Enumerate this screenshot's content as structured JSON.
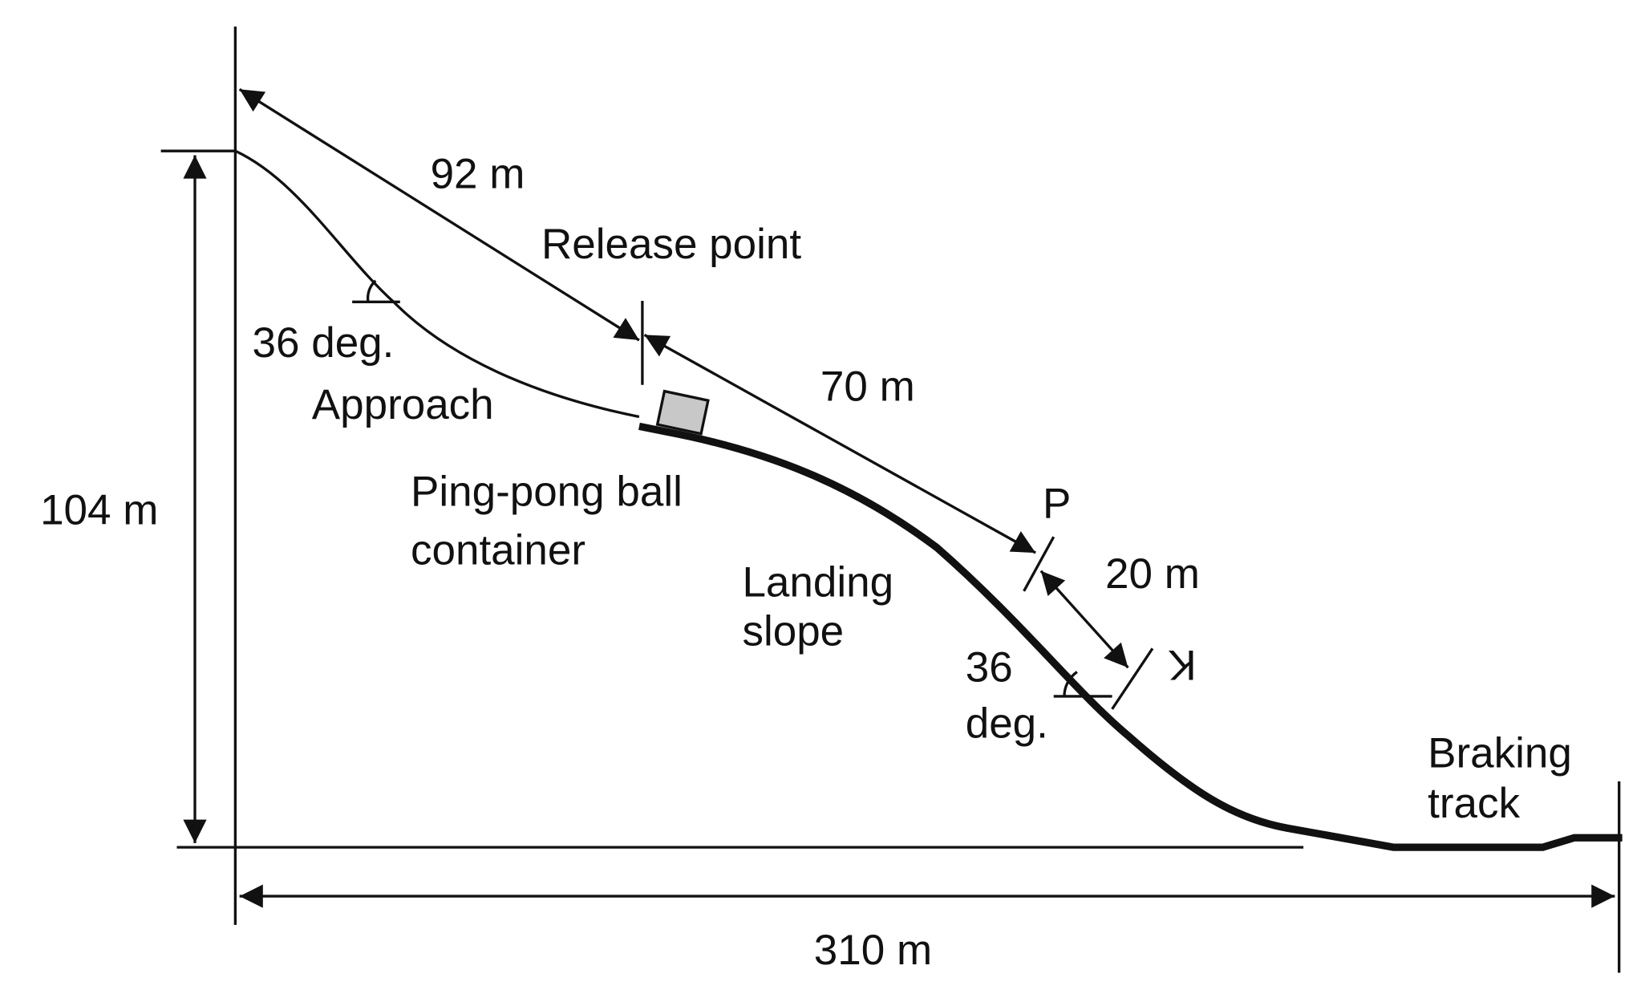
{
  "labels": {
    "length_92": "92 m",
    "release_point": "Release point",
    "length_70": "70 m",
    "angle_upper": "36 deg.",
    "approach": "Approach",
    "height": "104 m",
    "container": [
      "Ping-pong ball",
      "container"
    ],
    "landing_slope": [
      "Landing",
      "slope"
    ],
    "point_p": "P",
    "length_20": "20 m",
    "point_k": "K",
    "angle_lower": [
      "36",
      "deg."
    ],
    "braking_track": [
      "Braking",
      "track"
    ],
    "width": "310 m"
  }
}
